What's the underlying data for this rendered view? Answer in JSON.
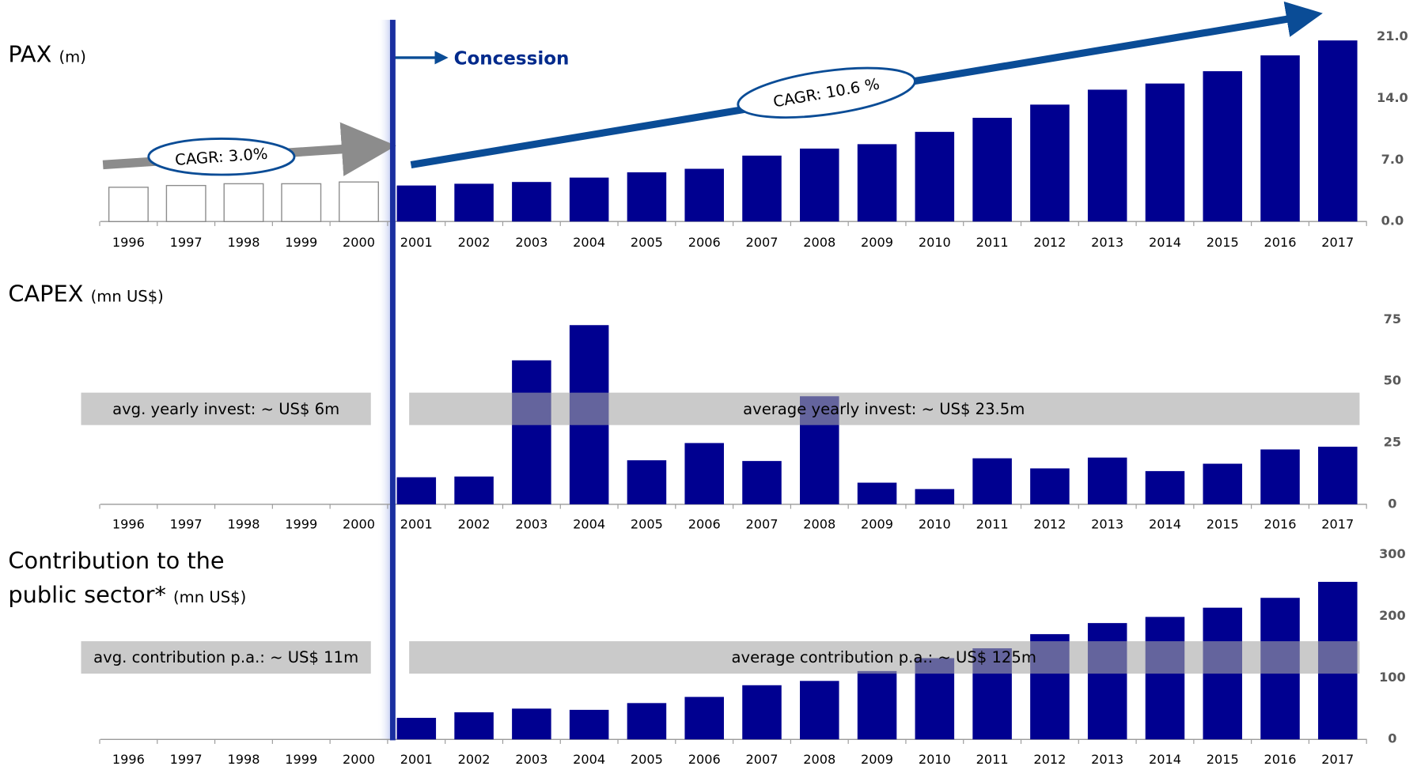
{
  "chart_data": [
    {
      "type": "bar",
      "title": "PAX",
      "unit": "(m)",
      "categories": [
        "1996",
        "1997",
        "1998",
        "1999",
        "2000",
        "2001",
        "2002",
        "2003",
        "2004",
        "2005",
        "2006",
        "2007",
        "2008",
        "2009",
        "2010",
        "2011",
        "2012",
        "2013",
        "2014",
        "2015",
        "2016",
        "2017"
      ],
      "values": [
        3.9,
        4.1,
        4.3,
        4.3,
        4.5,
        4.1,
        4.3,
        4.5,
        5.0,
        5.6,
        6.0,
        7.5,
        8.3,
        8.8,
        10.2,
        11.8,
        13.3,
        15.0,
        15.7,
        17.1,
        18.9,
        20.6
      ],
      "colors": [
        "#ffffff",
        "#ffffff",
        "#ffffff",
        "#ffffff",
        "#ffffff",
        "#000090",
        "#000090",
        "#000090",
        "#000090",
        "#000090",
        "#000090",
        "#000090",
        "#000090",
        "#000090",
        "#000090",
        "#000090",
        "#000090",
        "#000090",
        "#000090",
        "#000090",
        "#000090",
        "#000090"
      ],
      "ylim": [
        0,
        21
      ],
      "yticks": [
        {
          "value": 0,
          "label": "0.0"
        },
        {
          "value": 7,
          "label": "7.0"
        },
        {
          "value": 14,
          "label": "14.0"
        },
        {
          "value": 21,
          "label": "21.0"
        }
      ],
      "annotations": [
        "Concession",
        "CAGR: 3.0%",
        "CAGR: 10.6 %"
      ]
    },
    {
      "type": "bar",
      "title": "CAPEX",
      "unit": "(mn US$)",
      "categories": [
        "1996",
        "1997",
        "1998",
        "1999",
        "2000",
        "2001",
        "2002",
        "2003",
        "2004",
        "2005",
        "2006",
        "2007",
        "2008",
        "2009",
        "2010",
        "2011",
        "2012",
        "2013",
        "2014",
        "2015",
        "2016",
        "2017"
      ],
      "values": [
        null,
        null,
        null,
        null,
        null,
        11,
        11.3,
        58.5,
        72.8,
        17.9,
        24.9,
        17.6,
        43.9,
        8.8,
        6.2,
        18.7,
        14.6,
        19,
        13.5,
        16.5,
        22.3,
        23.4
      ],
      "color": "#000090",
      "ylim": [
        0,
        75
      ],
      "yticks": [
        0,
        25,
        50,
        75
      ],
      "annotations": [
        "avg. yearly invest: ~ US$ 6m",
        "average yearly invest: ~ US$ 23.5m"
      ]
    },
    {
      "type": "bar",
      "title": "Contribution to the public sector*",
      "unit": "(mn US$)",
      "categories": [
        "1996",
        "1997",
        "1998",
        "1999",
        "2000",
        "2001",
        "2002",
        "2003",
        "2004",
        "2005",
        "2006",
        "2007",
        "2008",
        "2009",
        "2010",
        "2011",
        "2012",
        "2013",
        "2014",
        "2015",
        "2016",
        "2017"
      ],
      "values": [
        null,
        null,
        null,
        null,
        null,
        35,
        44,
        50,
        48,
        59,
        69,
        88,
        95,
        111,
        132,
        148,
        171,
        189,
        199,
        214,
        230,
        256
      ],
      "color": "#000090",
      "ylim": [
        0,
        300
      ],
      "yticks": [
        0,
        100,
        200,
        300
      ],
      "annotations": [
        "avg. contribution p.a.: ~ US$ 11m",
        "average contribution p.a.: ~ US$ 125m"
      ]
    }
  ]
}
